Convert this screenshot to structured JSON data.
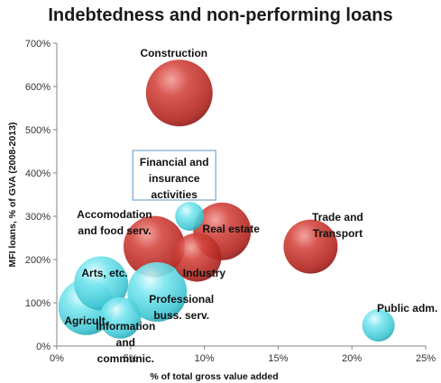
{
  "chart_data": {
    "type": "bubble",
    "title": "Indebtedness and non-performing loans",
    "xlabel": "% of total gross value added",
    "ylabel": "MFI loans, % of GVA (2008-2013)",
    "xlim": [
      0,
      25
    ],
    "ylim": [
      0,
      700
    ],
    "xticks": [
      "0%",
      "5%",
      "10%",
      "15%",
      "20%",
      "25%"
    ],
    "yticks": [
      "0%",
      "100%",
      "200%",
      "300%",
      "400%",
      "500%",
      "600%",
      "700%"
    ],
    "grid": false,
    "colors": {
      "high_npl": "#c0302c",
      "low_npl": "#4fd3e0"
    },
    "points": [
      {
        "label": "Construction",
        "x": 8.3,
        "y": 585,
        "size": 37,
        "group": "high_npl"
      },
      {
        "label": "Real  estate",
        "x": 11.2,
        "y": 265,
        "size": 32,
        "group": "high_npl"
      },
      {
        "label": "Accomodation and food serv.",
        "x": 6.6,
        "y": 230,
        "size": 34,
        "group": "high_npl"
      },
      {
        "label": "Industry",
        "x": 9.5,
        "y": 205,
        "size": 27,
        "group": "high_npl"
      },
      {
        "label": "Trade and Transport",
        "x": 17.2,
        "y": 230,
        "size": 30,
        "group": "high_npl"
      },
      {
        "label": "Financial and insurance activities",
        "x": 9.0,
        "y": 300,
        "size": 16,
        "group": "low_npl"
      },
      {
        "label": "Arts, etc.",
        "x": 3.0,
        "y": 145,
        "size": 30,
        "group": "low_npl"
      },
      {
        "label": "Professional buss. serv.",
        "x": 6.8,
        "y": 125,
        "size": 33,
        "group": "low_npl"
      },
      {
        "label": "Agricult.",
        "x": 2.0,
        "y": 90,
        "size": 31,
        "group": "low_npl"
      },
      {
        "label": "Information and communic.",
        "x": 4.3,
        "y": 65,
        "size": 23,
        "group": "low_npl"
      },
      {
        "label": "Public adm.",
        "x": 21.8,
        "y": 48,
        "size": 18,
        "group": "low_npl"
      }
    ]
  }
}
